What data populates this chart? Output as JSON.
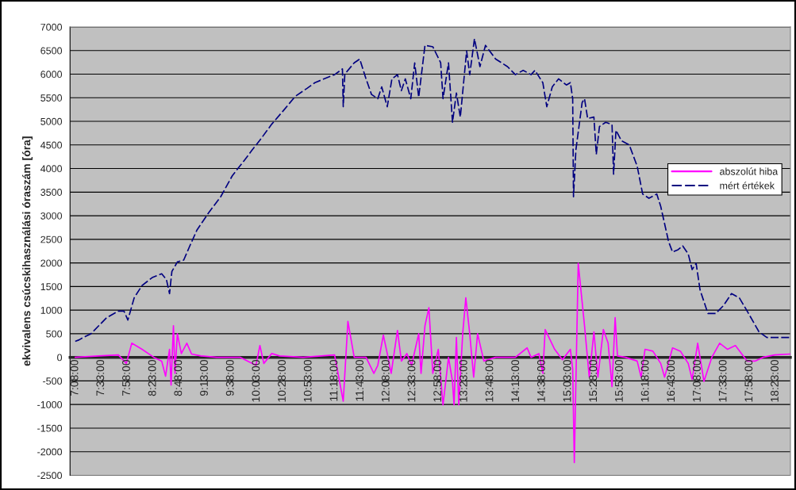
{
  "chart_data": {
    "type": "line",
    "ylabel": "ekvivalens csúcskihasználási óraszám [óra]",
    "xlim": [
      7.05,
      18.623
    ],
    "xticks": [
      {
        "value": 7.1333,
        "label": "7:08:00"
      },
      {
        "value": 7.55,
        "label": "7:33:00"
      },
      {
        "value": 7.9667,
        "label": "7:58:00"
      },
      {
        "value": 8.3833,
        "label": "8:23:00"
      },
      {
        "value": 8.8,
        "label": "8:48:00"
      },
      {
        "value": 9.2167,
        "label": "9:13:00"
      },
      {
        "value": 9.6333,
        "label": "9:38:00"
      },
      {
        "value": 10.05,
        "label": "10:03:00"
      },
      {
        "value": 10.4667,
        "label": "10:28:00"
      },
      {
        "value": 10.8833,
        "label": "10:53:00"
      },
      {
        "value": 11.3,
        "label": "11:18:00"
      },
      {
        "value": 11.7167,
        "label": "11:43:00"
      },
      {
        "value": 12.1333,
        "label": "12:08:00"
      },
      {
        "value": 12.55,
        "label": "12:33:00"
      },
      {
        "value": 12.9667,
        "label": "12:58:00"
      },
      {
        "value": 13.3833,
        "label": "13:23:00"
      },
      {
        "value": 13.8,
        "label": "13:48:00"
      },
      {
        "value": 14.2167,
        "label": "14:13:00"
      },
      {
        "value": 14.6333,
        "label": "14:38:00"
      },
      {
        "value": 15.05,
        "label": "15:03:00"
      },
      {
        "value": 15.4667,
        "label": "15:28:00"
      },
      {
        "value": 15.8833,
        "label": "15:53:00"
      },
      {
        "value": 16.3,
        "label": "16:18:00"
      },
      {
        "value": 16.7167,
        "label": "16:43:00"
      },
      {
        "value": 17.1333,
        "label": "17:08:00"
      },
      {
        "value": 17.55,
        "label": "17:33:00"
      },
      {
        "value": 17.9667,
        "label": "17:58:00"
      },
      {
        "value": 18.3833,
        "label": "18:23:00"
      }
    ],
    "ylim": [
      -2500,
      7000
    ],
    "yticks": [
      -2500,
      -2000,
      -1500,
      -1000,
      -500,
      0,
      500,
      1000,
      1500,
      2000,
      2500,
      3000,
      3500,
      4000,
      4500,
      5000,
      5500,
      6000,
      6500,
      7000
    ],
    "grid": "y",
    "legend": "right",
    "series": [
      {
        "name": "abszolút hiba",
        "color": "#ff00ff",
        "line_style": "solid",
        "x": [
          7.133,
          7.512,
          7.827,
          7.954,
          8.042,
          8.206,
          8.396,
          8.522,
          8.585,
          8.648,
          8.673,
          8.711,
          8.736,
          8.774,
          8.838,
          8.926,
          9.002,
          9.153,
          9.406,
          9.785,
          10.037,
          10.1,
          10.163,
          10.29,
          10.416,
          10.795,
          11.3,
          11.439,
          11.514,
          11.615,
          11.805,
          11.931,
          11.994,
          12.083,
          12.146,
          12.209,
          12.31,
          12.373,
          12.461,
          12.537,
          12.651,
          12.689,
          12.752,
          12.815,
          12.878,
          12.966,
          13.042,
          13.13,
          13.194,
          13.219,
          13.257,
          13.295,
          13.358,
          13.408,
          13.471,
          13.534,
          13.597,
          13.698,
          13.888,
          14.204,
          14.393,
          14.456,
          14.582,
          14.645,
          14.683,
          14.835,
          14.961,
          15.088,
          15.125,
          15.151,
          15.214,
          15.315,
          15.391,
          15.466,
          15.53,
          15.618,
          15.694,
          15.757,
          15.807,
          15.845,
          15.971,
          16.161,
          16.224,
          16.287,
          16.413,
          16.539,
          16.602,
          16.729,
          16.855,
          16.981,
          17.044,
          17.133,
          17.234,
          17.36,
          17.486,
          17.613,
          17.739,
          17.928,
          18.055,
          18.181,
          18.37,
          18.623
        ],
        "values": [
          0,
          30,
          50,
          -130,
          300,
          170,
          0,
          -80,
          -400,
          170,
          -590,
          670,
          -340,
          500,
          80,
          300,
          70,
          30,
          0,
          0,
          -170,
          250,
          -130,
          80,
          30,
          0,
          50,
          -930,
          760,
          0,
          0,
          -340,
          -170,
          470,
          80,
          -340,
          570,
          -80,
          80,
          -170,
          500,
          -340,
          670,
          1050,
          -340,
          170,
          -1010,
          0,
          -510,
          -1010,
          420,
          -1010,
          500,
          1260,
          500,
          -420,
          500,
          -80,
          0,
          0,
          200,
          0,
          80,
          -340,
          590,
          170,
          -50,
          170,
          -250,
          -2230,
          1990,
          670,
          -420,
          540,
          -420,
          590,
          300,
          -620,
          840,
          30,
          0,
          -80,
          -420,
          170,
          130,
          -130,
          -420,
          200,
          130,
          -130,
          -470,
          300,
          -510,
          0,
          300,
          170,
          250,
          -80,
          -80,
          0,
          50,
          70
        ]
      },
      {
        "name": "mért értékek",
        "color": "#000080",
        "line_style": "dashed",
        "x": [
          7.133,
          7.196,
          7.26,
          7.386,
          7.512,
          7.638,
          7.827,
          7.916,
          7.979,
          8.08,
          8.206,
          8.37,
          8.522,
          8.598,
          8.648,
          8.686,
          8.774,
          8.876,
          8.964,
          9.09,
          9.28,
          9.469,
          9.658,
          9.848,
          9.974,
          10.1,
          10.29,
          10.479,
          10.668,
          10.858,
          10.984,
          11.3,
          11.426,
          11.439,
          11.464,
          11.615,
          11.704,
          11.805,
          11.893,
          11.994,
          12.057,
          12.146,
          12.221,
          12.31,
          12.373,
          12.436,
          12.524,
          12.587,
          12.651,
          12.752,
          12.878,
          13.004,
          13.042,
          13.13,
          13.194,
          13.257,
          13.32,
          13.421,
          13.471,
          13.547,
          13.635,
          13.724,
          13.888,
          14.077,
          14.204,
          14.33,
          14.456,
          14.519,
          14.645,
          14.709,
          14.797,
          14.898,
          15.024,
          15.088,
          15.125,
          15.138,
          15.176,
          15.277,
          15.315,
          15.365,
          15.466,
          15.504,
          15.555,
          15.656,
          15.757,
          15.782,
          15.82,
          15.908,
          16.034,
          16.161,
          16.249,
          16.35,
          16.476,
          16.539,
          16.666,
          16.729,
          16.817,
          16.893,
          16.981,
          17.044,
          17.108,
          17.171,
          17.297,
          17.423,
          17.55,
          17.676,
          17.802,
          17.928,
          18.118,
          18.244,
          18.623
        ],
        "values": [
          340,
          370,
          420,
          500,
          670,
          840,
          980,
          980,
          790,
          1260,
          1520,
          1690,
          1770,
          1650,
          1350,
          1820,
          2020,
          2060,
          2330,
          2700,
          3070,
          3400,
          3850,
          4170,
          4390,
          4600,
          4940,
          5230,
          5530,
          5700,
          5820,
          5990,
          6110,
          5310,
          6000,
          6240,
          6320,
          5900,
          5570,
          5480,
          5730,
          5310,
          5900,
          5990,
          5650,
          5900,
          5480,
          6240,
          5510,
          6610,
          6580,
          6240,
          5480,
          6240,
          4980,
          5600,
          5090,
          6490,
          5990,
          6750,
          6160,
          6610,
          6320,
          6160,
          5990,
          6080,
          5990,
          6080,
          5820,
          5310,
          5730,
          5900,
          5770,
          5820,
          5480,
          3400,
          4390,
          5400,
          5480,
          5060,
          5090,
          4300,
          4890,
          4980,
          4930,
          3880,
          4810,
          4590,
          4500,
          4050,
          3460,
          3370,
          3460,
          3200,
          2450,
          2230,
          2280,
          2360,
          2190,
          1860,
          1990,
          1430,
          930,
          930,
          1100,
          1350,
          1260,
          980,
          540,
          420,
          420
        ]
      }
    ]
  }
}
